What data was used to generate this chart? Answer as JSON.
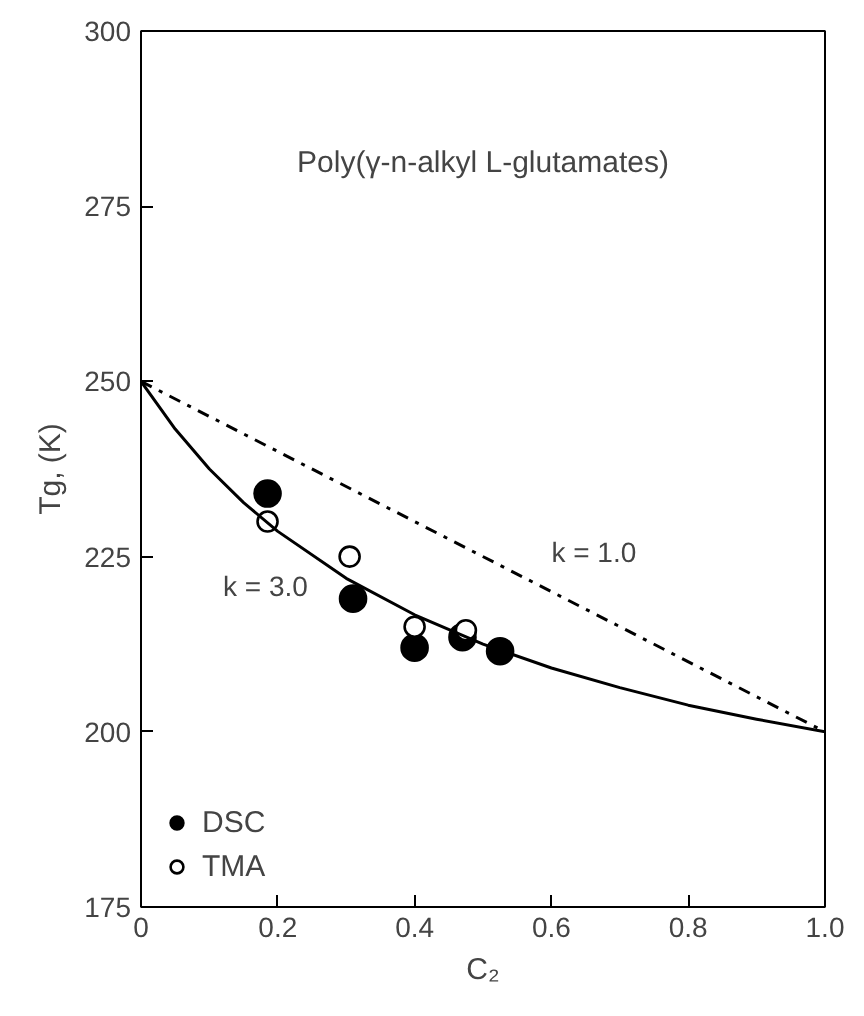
{
  "chart_data": {
    "type": "scatter",
    "xlabel": "C₂",
    "ylabel": "Tg, (K)",
    "xlim": [
      0,
      1.0
    ],
    "ylim": [
      175,
      300
    ],
    "xticks": [
      0,
      0.2,
      0.4,
      0.6,
      0.8,
      {
        "value": 1.0,
        "label": "1.0"
      }
    ],
    "yticks": [
      175,
      200,
      225,
      250,
      275,
      300
    ],
    "grid": false,
    "legend": "bottom left",
    "series": [
      {
        "name": "DSC",
        "marker": "circle",
        "color": "#000000",
        "x": [
          0.185,
          0.31,
          0.4,
          0.47,
          0.525
        ],
        "values": [
          234,
          219,
          212,
          213.5,
          211.5
        ]
      },
      {
        "name": "TMA",
        "marker": "circle",
        "color": "#ffffff",
        "x": [
          0.185,
          0.305,
          0.4,
          0.475
        ],
        "values": [
          230,
          225,
          215,
          214.5
        ]
      },
      {
        "name": "k = 3.0",
        "type": "line",
        "color": "#000000",
        "line_style": "solid",
        "x": [
          0,
          0.05,
          0.1,
          0.15,
          0.2,
          0.3,
          0.4,
          0.5,
          0.6,
          0.7,
          0.8,
          0.9,
          1.0
        ],
        "values": [
          250,
          243.2,
          237.5,
          232.7,
          228.6,
          221.9,
          216.7,
          212.5,
          209.1,
          206.3,
          203.8,
          201.8,
          200
        ]
      },
      {
        "name": "k = 1.0",
        "type": "line",
        "color": "#000000",
        "line_style": "dashdot",
        "x": [
          0,
          1.0
        ],
        "values": [
          250,
          200
        ]
      }
    ],
    "annotations": [
      "Poly(γ-n-alkyl L-glutamates)"
    ]
  }
}
